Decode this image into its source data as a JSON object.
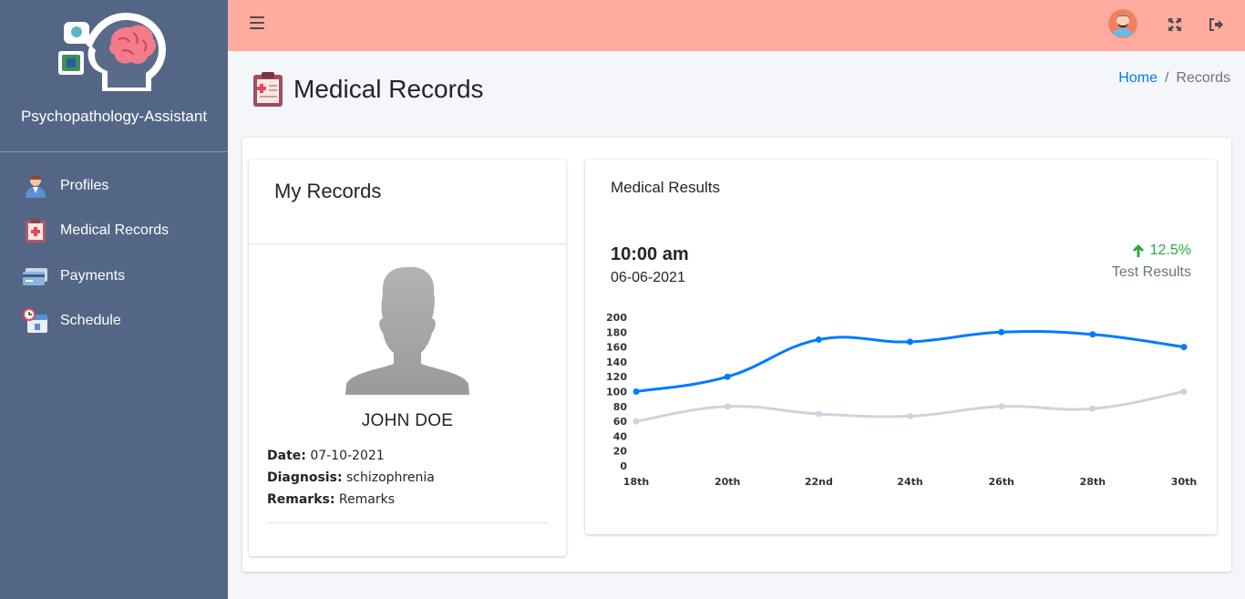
{
  "sidebar": {
    "brand_name": "Psychopathology-Assistant",
    "items": [
      {
        "label": "Profiles",
        "icon": "user-profile-icon"
      },
      {
        "label": "Medical Records",
        "icon": "medical-clipboard-icon"
      },
      {
        "label": "Payments",
        "icon": "payment-card-icon"
      },
      {
        "label": "Schedule",
        "icon": "calendar-clock-icon"
      }
    ]
  },
  "topbar": {
    "menu_icon": "hamburger-icon",
    "avatar_icon": "user-avatar-icon",
    "fullscreen_icon": "expand-icon",
    "logout_icon": "logout-icon"
  },
  "page": {
    "title": "Medical Records",
    "breadcrumb": {
      "home": "Home",
      "separator": "/",
      "current": "Records"
    }
  },
  "records": {
    "title": "My Records",
    "patient_name": "JOHN DOE",
    "date_label": "Date:",
    "date_value": "07-10-2021",
    "diagnosis_label": "Diagnosis:",
    "diagnosis_value": "schizophrenia",
    "remarks_label": "Remarks:",
    "remarks_value": "Remarks"
  },
  "results": {
    "title": "Medical Results",
    "time": "10:00 am",
    "date": "06-06-2021",
    "change": "12.5%",
    "change_label": "Test Results"
  },
  "colors": {
    "sidebar": "#536685",
    "topbar": "#ffaba0",
    "series_primary": "#007bff",
    "series_secondary": "#ced4da",
    "positive": "#28a745"
  },
  "chart_data": {
    "type": "line",
    "categories": [
      "18th",
      "20th",
      "22nd",
      "24th",
      "26th",
      "28th",
      "30th"
    ],
    "series": [
      {
        "values": [
          100,
          120,
          170,
          167,
          180,
          177,
          160
        ],
        "color": "#007bff"
      },
      {
        "values": [
          60,
          80,
          70,
          67,
          80,
          77,
          100
        ],
        "color": "#ced4da"
      }
    ],
    "yticks": [
      0,
      20,
      40,
      60,
      80,
      100,
      120,
      140,
      160,
      180,
      200
    ],
    "ylim": [
      0,
      200
    ],
    "grid": false,
    "legend": "none"
  }
}
